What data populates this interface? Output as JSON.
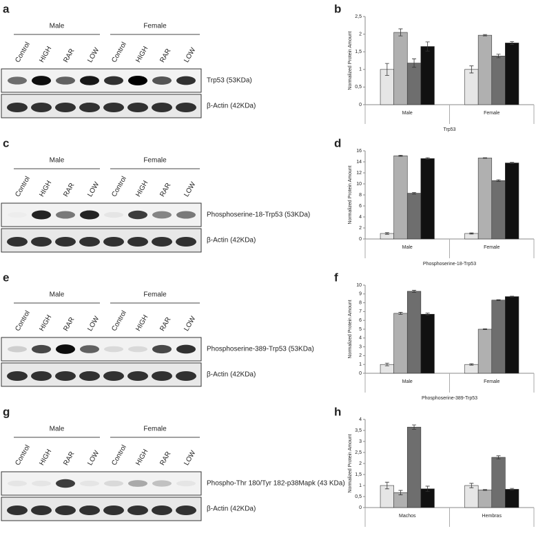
{
  "blots": [
    {
      "letter": "a",
      "sexes": [
        "Male",
        "Female"
      ],
      "lanes": [
        "Control",
        "HIGH",
        "RAR",
        "LOW",
        "Control",
        "HIGH",
        "RAR",
        "LOW"
      ],
      "bands": [
        "Trp53 (53KDa)",
        "β-Actin (42KDa)"
      ]
    },
    {
      "letter": "c",
      "sexes": [
        "Male",
        "Female"
      ],
      "lanes": [
        "Control",
        "HIGH",
        "RAR",
        "LOW",
        "Control",
        "HIGH",
        "RAR",
        "LOW"
      ],
      "bands": [
        "Phosphoserine-18-Trp53 (53KDa)",
        "β-Actin (42KDa)"
      ]
    },
    {
      "letter": "e",
      "sexes": [
        "Male",
        "Female"
      ],
      "lanes": [
        "Control",
        "HIGH",
        "RAR",
        "LOW",
        "Control",
        "HIGH",
        "RAR",
        "LOW"
      ],
      "bands": [
        "Phosphoserine-389-Trp53 (53KDa)",
        "β-Actin (42KDa)"
      ]
    },
    {
      "letter": "g",
      "sexes": [
        "Male",
        "Female"
      ],
      "lanes": [
        "Control",
        "HIGH",
        "RAR",
        "LOW",
        "Control",
        "HIGH",
        "RAR",
        "LOW"
      ],
      "bands": [
        "Phospho-Thr 180/Tyr 182-p38Mapk (43 KDa)",
        "β-Actin (42KDa)"
      ]
    }
  ],
  "chart_data": [
    {
      "type": "bar",
      "letter": "b",
      "ylabel": "Normalized Protein Amount",
      "xlabel": "Trp53",
      "categories": [
        "Male",
        "Female"
      ],
      "ylim": [
        0,
        2.5
      ],
      "yticks": [
        0,
        {
          "value": 0.5,
          "label": "0,5"
        },
        1,
        {
          "value": 1.5,
          "label": "1,5"
        },
        2,
        {
          "value": 2.5,
          "label": "2,5"
        }
      ],
      "series": [
        {
          "color": "#e6e6e6",
          "values": [
            1.0,
            1.0
          ],
          "errors": [
            0.17,
            0.1
          ]
        },
        {
          "color": "#b0b0b0",
          "values": [
            2.05,
            1.97
          ],
          "errors": [
            0.1,
            0.02
          ]
        },
        {
          "color": "#6e6e6e",
          "values": [
            1.18,
            1.38
          ],
          "errors": [
            0.12,
            0.05
          ]
        },
        {
          "color": "#111111",
          "values": [
            1.65,
            1.75
          ],
          "errors": [
            0.13,
            0.04
          ]
        }
      ]
    },
    {
      "type": "bar",
      "letter": "d",
      "ylabel": "Normalized Protein Amount",
      "xlabel": "Phosphoserine-18-Trp53",
      "categories": [
        "Male",
        "Female"
      ],
      "ylim": [
        0,
        16
      ],
      "yticks": [
        0,
        2,
        4,
        6,
        8,
        10,
        12,
        14,
        16
      ],
      "series": [
        {
          "color": "#e6e6e6",
          "values": [
            1.0,
            1.0
          ],
          "errors": [
            0.15,
            0.1
          ]
        },
        {
          "color": "#b0b0b0",
          "values": [
            15.1,
            14.7
          ],
          "errors": [
            0.1,
            0.05
          ]
        },
        {
          "color": "#6e6e6e",
          "values": [
            8.3,
            10.6
          ],
          "errors": [
            0.15,
            0.15
          ]
        },
        {
          "color": "#111111",
          "values": [
            14.6,
            13.8
          ],
          "errors": [
            0.15,
            0.1
          ]
        }
      ]
    },
    {
      "type": "bar",
      "letter": "f",
      "ylabel": "Normalized Protein Amount",
      "xlabel": "Phosphoserine-389-Trp53",
      "categories": [
        "Male",
        "Female"
      ],
      "ylim": [
        0,
        10
      ],
      "yticks": [
        0,
        1,
        2,
        3,
        4,
        5,
        6,
        7,
        8,
        9,
        10
      ],
      "series": [
        {
          "color": "#e6e6e6",
          "values": [
            1.0,
            1.0
          ],
          "errors": [
            0.15,
            0.08
          ]
        },
        {
          "color": "#b0b0b0",
          "values": [
            6.8,
            5.0
          ],
          "errors": [
            0.12,
            0.05
          ]
        },
        {
          "color": "#6e6e6e",
          "values": [
            9.3,
            8.3
          ],
          "errors": [
            0.12,
            0.05
          ]
        },
        {
          "color": "#111111",
          "values": [
            6.7,
            8.7
          ],
          "errors": [
            0.12,
            0.05
          ]
        }
      ]
    },
    {
      "type": "bar",
      "letter": "h",
      "ylabel": "Normalized Protein Amount",
      "xlabel": null,
      "categories": [
        "Machos",
        "Hembras"
      ],
      "ylim": [
        0,
        4
      ],
      "yticks": [
        0,
        {
          "value": 0.5,
          "label": "0,5"
        },
        1,
        {
          "value": 1.5,
          "label": "1,5"
        },
        2,
        {
          "value": 2.5,
          "label": "2,5"
        },
        3,
        {
          "value": 3.5,
          "label": "3,5"
        },
        4
      ],
      "series": [
        {
          "color": "#e6e6e6",
          "values": [
            1.0,
            1.0
          ],
          "errors": [
            0.15,
            0.1
          ]
        },
        {
          "color": "#b0b0b0",
          "values": [
            0.68,
            0.8
          ],
          "errors": [
            0.1,
            0.02
          ]
        },
        {
          "color": "#6e6e6e",
          "values": [
            3.65,
            2.28
          ],
          "errors": [
            0.1,
            0.07
          ]
        },
        {
          "color": "#111111",
          "values": [
            0.85,
            0.83
          ],
          "errors": [
            0.12,
            0.04
          ]
        }
      ]
    }
  ]
}
